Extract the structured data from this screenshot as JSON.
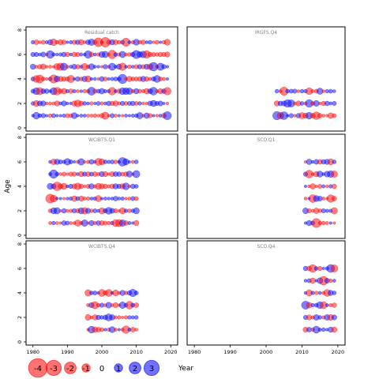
{
  "chart_data": {
    "type": "scatter",
    "ylabel": "Age",
    "xlabel": "Year",
    "xlim": [
      1978,
      2022
    ],
    "ylim": [
      0,
      8
    ],
    "x_ticks": [
      1980,
      1990,
      2000,
      2010,
      2020
    ],
    "y_ticks": [
      0,
      2,
      4,
      6,
      8
    ],
    "colors": {
      "negative": "#ff0000",
      "positive": "#0000ff"
    },
    "legend": {
      "placement": "bottom-left",
      "values": [
        -4,
        -3,
        -2,
        -1,
        0,
        1,
        2,
        3
      ]
    },
    "panels": [
      {
        "title": "Residual catch",
        "year_start": 1980,
        "year_end": 2019,
        "ages": [
          1,
          2,
          3,
          4,
          5,
          6,
          7
        ]
      },
      {
        "title": "IRGFS.Q4",
        "year_start": 2003,
        "year_end": 2019,
        "ages": [
          1,
          2,
          3
        ]
      },
      {
        "title": "WCIBTS.Q1",
        "year_start": 1985,
        "year_end": 2010,
        "ages": [
          1,
          2,
          3,
          4,
          5,
          6
        ]
      },
      {
        "title": "SCO.Q1",
        "year_start": 2011,
        "year_end": 2019,
        "ages": [
          1,
          2,
          3,
          4,
          5,
          6
        ]
      },
      {
        "title": "WCIBTS.Q4",
        "year_start": 1996,
        "year_end": 2010,
        "ages": [
          1,
          2,
          3,
          4
        ]
      },
      {
        "title": "SCO.Q4",
        "year_start": 2011,
        "year_end": 2019,
        "ages": [
          1,
          2,
          3,
          4,
          5,
          6
        ]
      }
    ]
  }
}
